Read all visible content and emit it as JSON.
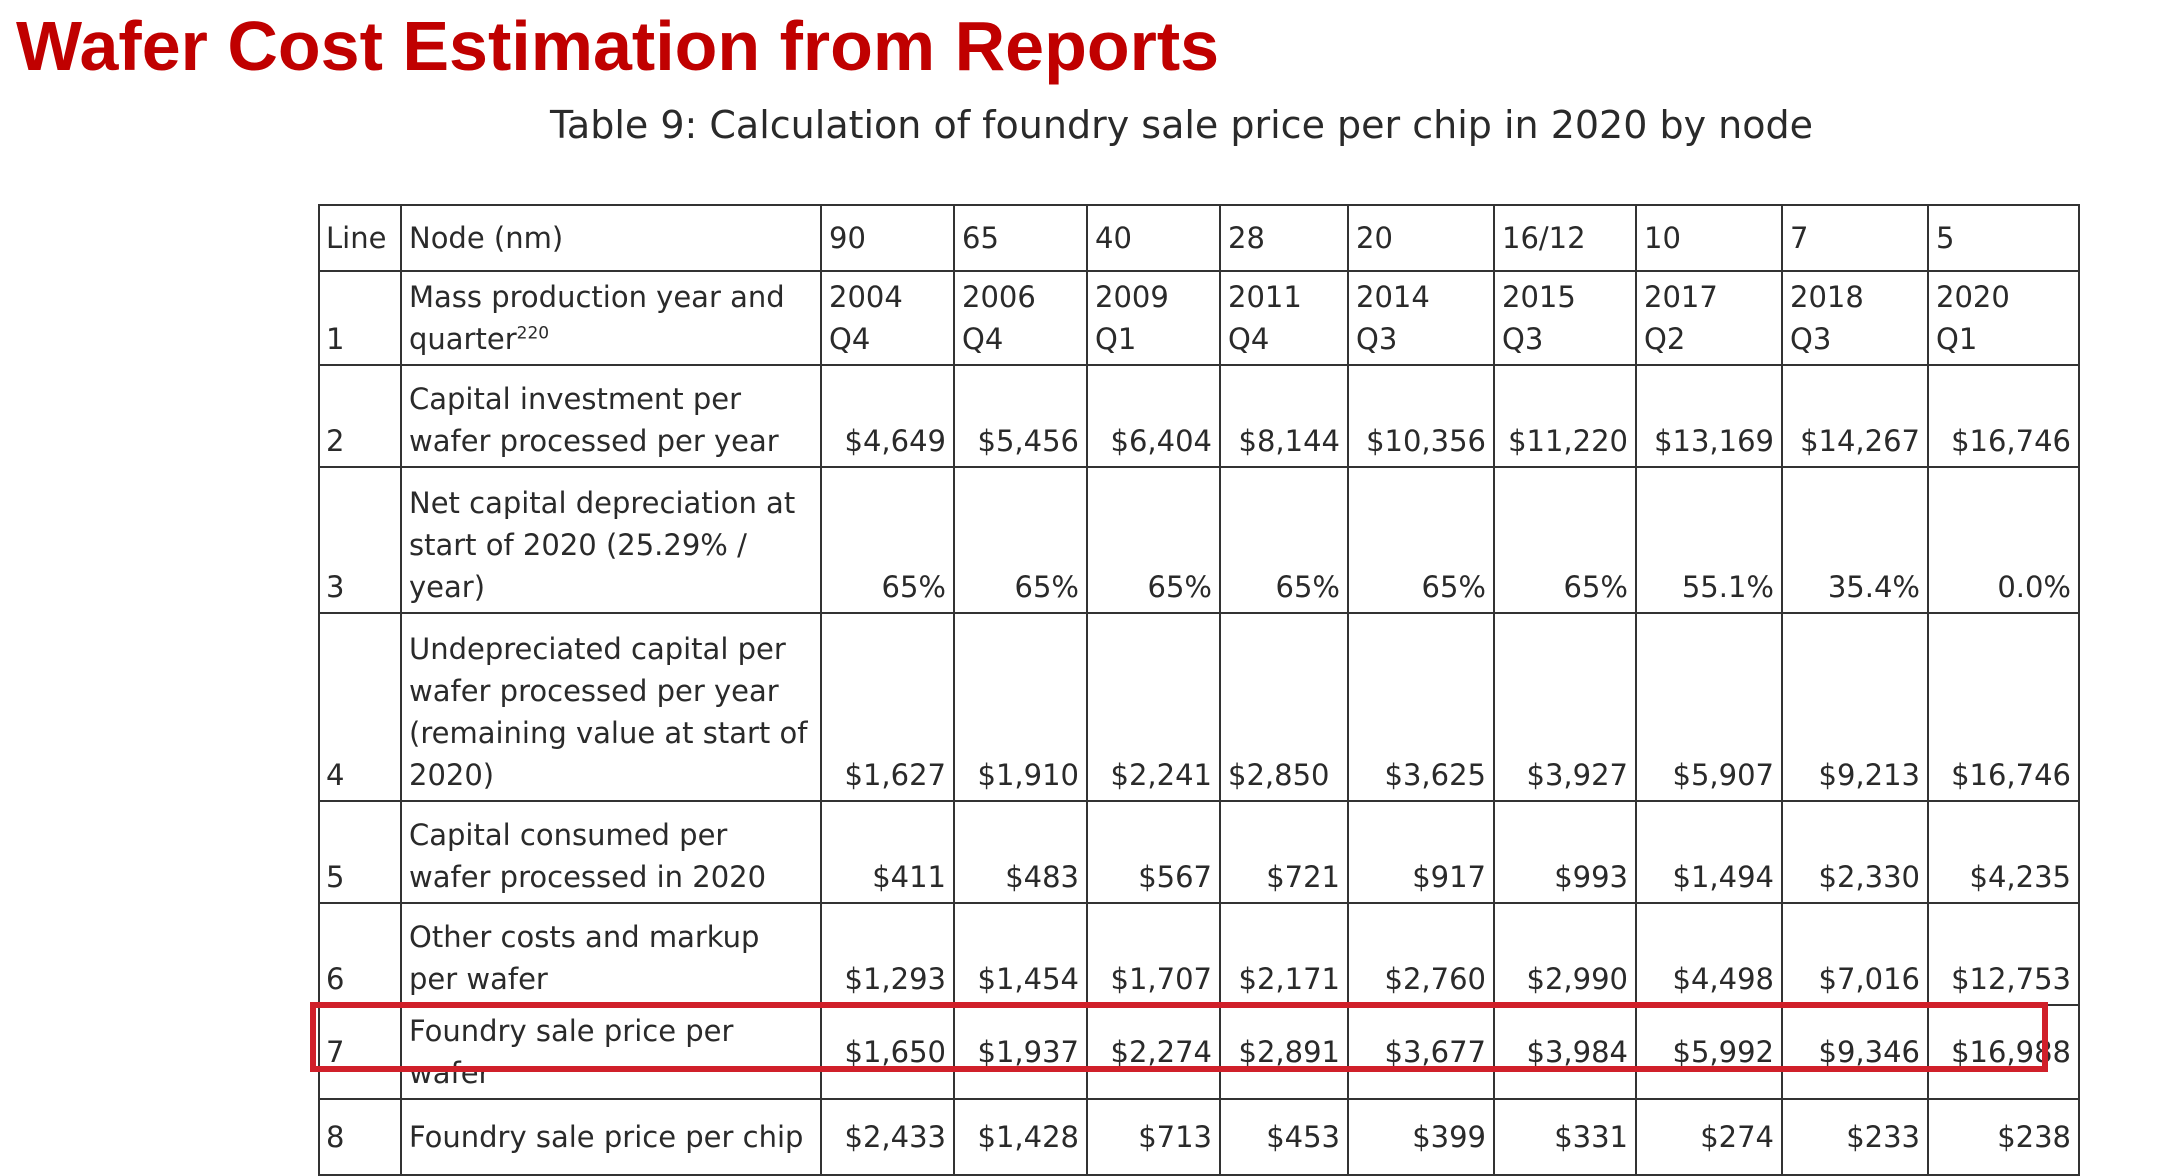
{
  "slide": {
    "title": "Wafer Cost Estimation from Reports"
  },
  "table": {
    "caption": "Table 9: Calculation of foundry sale price per chip in 2020 by node",
    "header": {
      "line": "Line",
      "label": "Node (nm)",
      "nodes": [
        "90",
        "65",
        "40",
        "28",
        "20",
        "16/12",
        "10",
        "7",
        "5"
      ]
    },
    "rows": [
      {
        "line": "1",
        "label": "Mass production year and quarter",
        "label_sup": "220",
        "values": [
          {
            "year": "2004",
            "q": "Q4"
          },
          {
            "year": "2006",
            "q": "Q4"
          },
          {
            "year": "2009",
            "q": "Q1"
          },
          {
            "year": "2011",
            "q": "Q4"
          },
          {
            "year": "2014",
            "q": "Q3"
          },
          {
            "year": "2015",
            "q": "Q3"
          },
          {
            "year": "2017",
            "q": "Q2"
          },
          {
            "year": "2018",
            "q": "Q3"
          },
          {
            "year": "2020",
            "q": "Q1"
          }
        ]
      },
      {
        "line": "2",
        "label": "Capital investment per wafer processed per year",
        "values": [
          "$4,649",
          "$5,456",
          "$6,404",
          "$8,144",
          "$10,356",
          "$11,220",
          "$13,169",
          "$14,267",
          "$16,746"
        ]
      },
      {
        "line": "3",
        "label": "Net capital depreciation at start of 2020 (25.29% / year)",
        "values": [
          "65%",
          "65%",
          "65%",
          "65%",
          "65%",
          "65%",
          "55.1%",
          "35.4%",
          "0.0%"
        ]
      },
      {
        "line": "4",
        "label": "Undepreciated capital per wafer processed per year (remaining value at start of 2020)",
        "values": [
          "$1,627",
          "$1,910",
          "$2,241",
          "$2,850",
          "$3,625",
          "$3,927",
          "$5,907",
          "$9,213",
          "$16,746"
        ]
      },
      {
        "line": "5",
        "label": "Capital consumed per wafer processed in 2020",
        "values": [
          "$411",
          "$483",
          "$567",
          "$721",
          "$917",
          "$993",
          "$1,494",
          "$2,330",
          "$4,235"
        ]
      },
      {
        "line": "6",
        "label": "Other costs and markup per wafer",
        "values": [
          "$1,293",
          "$1,454",
          "$1,707",
          "$2,171",
          "$2,760",
          "$2,990",
          "$4,498",
          "$7,016",
          "$12,753"
        ]
      },
      {
        "line": "7",
        "label": "Foundry sale price per wafer",
        "values": [
          "$1,650",
          "$1,937",
          "$2,274",
          "$2,891",
          "$3,677",
          "$3,984",
          "$5,992",
          "$9,346",
          "$16,988"
        ]
      },
      {
        "line": "8",
        "label": "Foundry sale price per chip",
        "values": [
          "$2,433",
          "$1,428",
          "$713",
          "$453",
          "$399",
          "$331",
          "$274",
          "$233",
          "$238"
        ]
      }
    ],
    "highlighted_row": "7",
    "highlight_color": "#d0202a"
  },
  "colors": {
    "title": "#c00000",
    "text": "#2a2a2a",
    "grid": "#333333"
  }
}
